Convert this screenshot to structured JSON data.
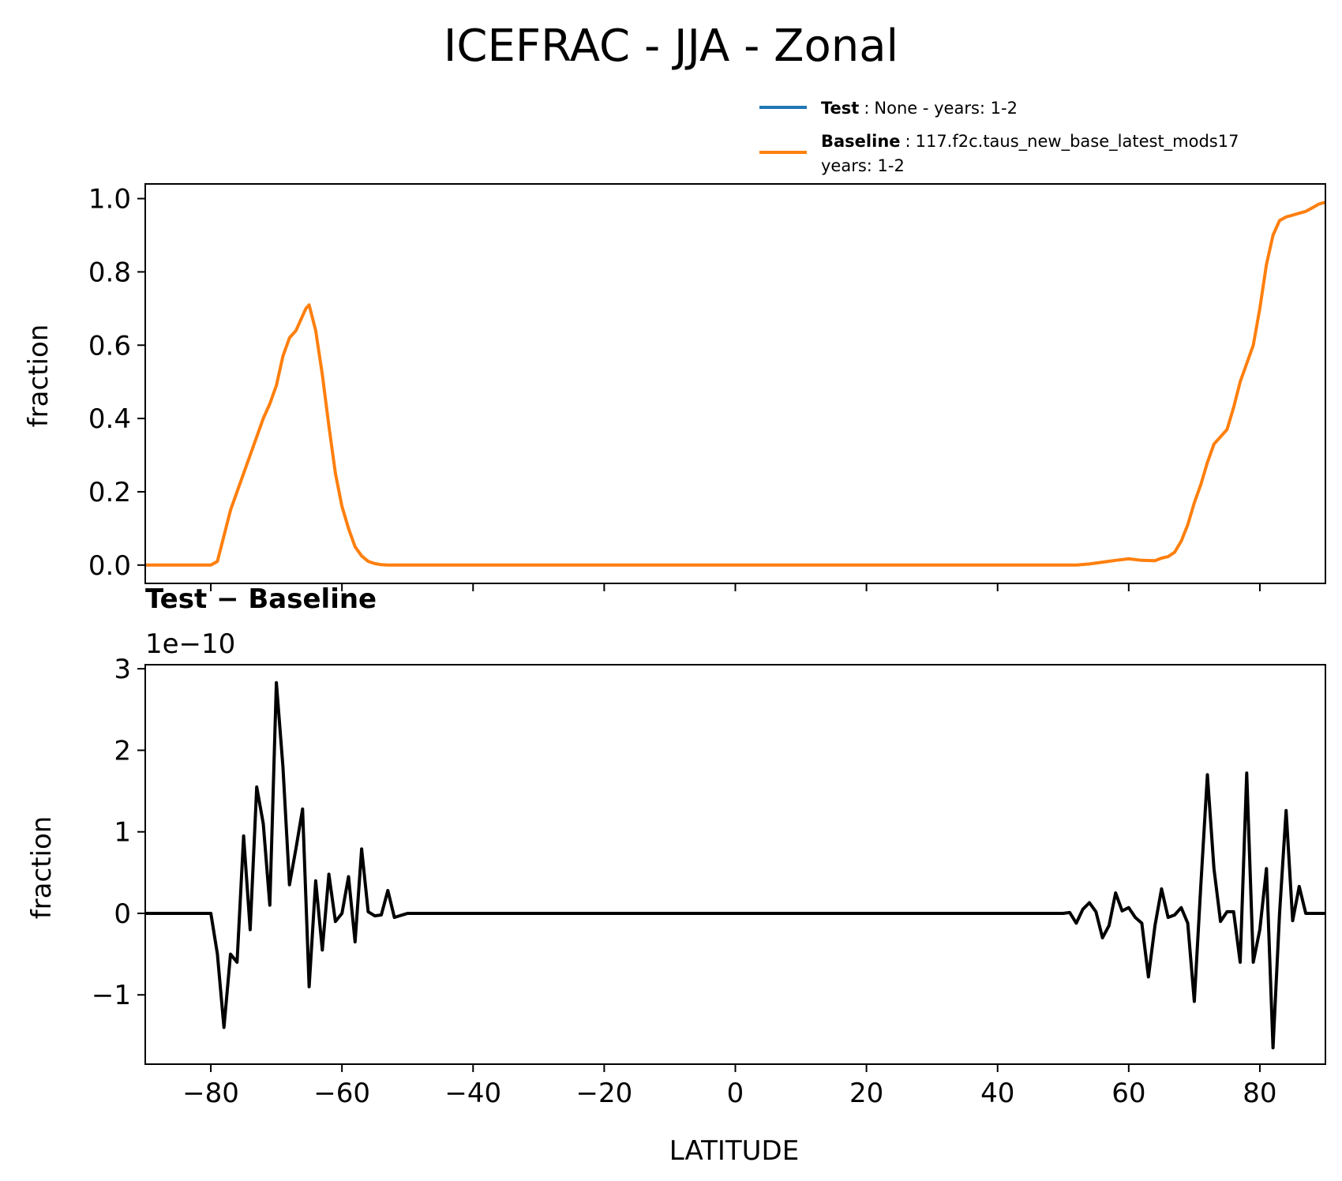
{
  "title": "ICEFRAC - JJA - Zonal",
  "legend": {
    "test": {
      "name": "Test",
      "text": "None - years: 1-2",
      "color": "#1f77b4"
    },
    "baseline": {
      "name": "Baseline",
      "text": "117.f2c.taus_new_base_latest_mods17",
      "text2": "years: 1-2",
      "color": "#ff7f0e"
    }
  },
  "chart_data": [
    {
      "type": "line",
      "ylabel": "fraction",
      "xlim": [
        -90,
        90
      ],
      "ylim": [
        -0.05,
        1.04
      ],
      "yticks": [
        0.0,
        0.2,
        0.4,
        0.6,
        0.8,
        1.0
      ],
      "ytick_labels": [
        "0.0",
        "0.2",
        "0.4",
        "0.6",
        "0.8",
        "1.0"
      ],
      "series": [
        {
          "name": "Baseline",
          "color": "#ff7f0e",
          "x": [
            -90,
            -85,
            -80,
            -79,
            -78,
            -77,
            -76,
            -75,
            -74,
            -73,
            -72,
            -71,
            -70,
            -69,
            -68,
            -67,
            -66,
            -65.5,
            -65,
            -64,
            -63,
            -62,
            -61,
            -60,
            -59,
            -58,
            -57,
            -56,
            -55,
            -54,
            -53,
            -52,
            -50,
            0,
            50,
            52,
            54,
            56,
            58,
            60,
            62,
            64,
            65,
            66,
            67,
            68,
            69,
            70,
            71,
            72,
            73,
            74,
            75,
            76,
            77,
            78,
            79,
            80,
            81,
            82,
            83,
            84,
            85,
            86,
            87,
            88,
            89,
            90
          ],
          "values": [
            0,
            0,
            0,
            0.01,
            0.08,
            0.15,
            0.2,
            0.25,
            0.3,
            0.35,
            0.4,
            0.44,
            0.49,
            0.57,
            0.62,
            0.64,
            0.68,
            0.7,
            0.71,
            0.64,
            0.52,
            0.38,
            0.25,
            0.16,
            0.1,
            0.05,
            0.025,
            0.01,
            0.004,
            0.001,
            0,
            0,
            0,
            0,
            0,
            0,
            0.003,
            0.008,
            0.013,
            0.017,
            0.013,
            0.012,
            0.019,
            0.023,
            0.035,
            0.065,
            0.11,
            0.17,
            0.22,
            0.28,
            0.33,
            0.35,
            0.37,
            0.43,
            0.5,
            0.55,
            0.6,
            0.7,
            0.82,
            0.9,
            0.94,
            0.95,
            0.955,
            0.96,
            0.965,
            0.975,
            0.985,
            0.99
          ]
        }
      ]
    },
    {
      "type": "line",
      "title": "Test − Baseline",
      "offset_label": "1e−10",
      "xlabel": "LATITUDE",
      "ylabel": "fraction",
      "xlim": [
        -90,
        90
      ],
      "ylim": [
        -1.85,
        3.05
      ],
      "xticks": [
        -80,
        -60,
        -40,
        -20,
        0,
        20,
        40,
        60,
        80
      ],
      "xtick_labels": [
        "−80",
        "−60",
        "−40",
        "−20",
        "0",
        "20",
        "40",
        "60",
        "80"
      ],
      "yticks": [
        -1,
        0,
        1,
        2,
        3
      ],
      "ytick_labels": [
        "−1",
        "0",
        "1",
        "2",
        "3"
      ],
      "series": [
        {
          "name": "Test - Baseline",
          "color": "#000000",
          "x": [
            -90,
            -80,
            -79,
            -78,
            -77,
            -76,
            -75,
            -74,
            -73,
            -72,
            -71,
            -70,
            -69,
            -68,
            -67,
            -66,
            -65,
            -64,
            -63,
            -62,
            -61,
            -60,
            -59,
            -58,
            -57,
            -56,
            -55,
            -54,
            -53,
            -52,
            -50,
            0,
            50,
            51,
            52,
            53,
            54,
            55,
            56,
            57,
            58,
            59,
            60,
            61,
            62,
            63,
            64,
            65,
            66,
            67,
            68,
            69,
            70,
            71,
            72,
            73,
            74,
            75,
            76,
            77,
            78,
            79,
            80,
            81,
            82,
            83,
            84,
            85,
            86,
            87,
            88,
            89,
            90
          ],
          "values": [
            0,
            0,
            -0.5,
            -1.4,
            -0.5,
            -0.6,
            0.95,
            -0.2,
            1.55,
            1.1,
            0.1,
            2.83,
            1.8,
            0.35,
            0.8,
            1.28,
            -0.9,
            0.4,
            -0.45,
            0.48,
            -0.1,
            0.0,
            0.45,
            -0.35,
            0.79,
            0.02,
            -0.03,
            -0.02,
            0.28,
            -0.05,
            0,
            0,
            0,
            0.01,
            -0.12,
            0.05,
            0.13,
            0.02,
            -0.3,
            -0.15,
            0.25,
            0.03,
            0.07,
            -0.05,
            -0.12,
            -0.78,
            -0.15,
            0.3,
            -0.05,
            -0.02,
            0.07,
            -0.12,
            -1.08,
            0.35,
            1.7,
            0.55,
            -0.1,
            0.02,
            0.02,
            -0.6,
            1.72,
            -0.6,
            -0.2,
            0.55,
            -1.65,
            0.0,
            1.26,
            -0.09,
            0.33,
            0,
            0,
            0,
            0
          ]
        }
      ]
    }
  ]
}
